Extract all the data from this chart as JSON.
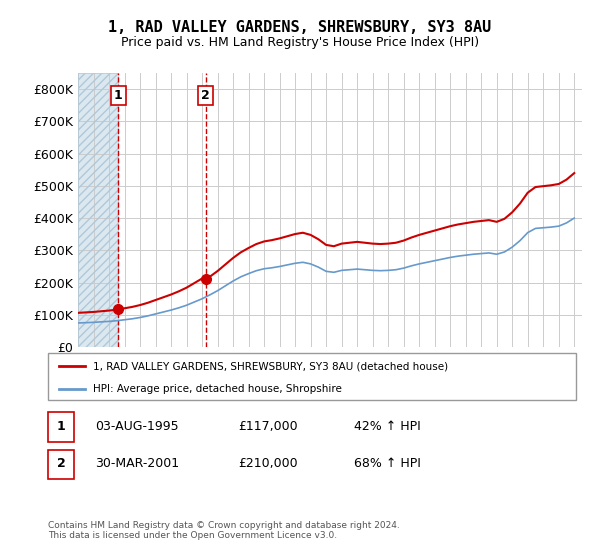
{
  "title": "1, RAD VALLEY GARDENS, SHREWSBURY, SY3 8AU",
  "subtitle": "Price paid vs. HM Land Registry's House Price Index (HPI)",
  "legend_label_red": "1, RAD VALLEY GARDENS, SHREWSBURY, SY3 8AU (detached house)",
  "legend_label_blue": "HPI: Average price, detached house, Shropshire",
  "red_color": "#cc0000",
  "blue_color": "#6699cc",
  "hatch_color": "#c8d8e8",
  "ylim": [
    0,
    850000
  ],
  "yticks": [
    0,
    100000,
    200000,
    300000,
    400000,
    500000,
    600000,
    700000,
    800000
  ],
  "ytick_labels": [
    "£0",
    "£100K",
    "£200K",
    "£300K",
    "£400K",
    "£500K",
    "£600K",
    "£700K",
    "£800K"
  ],
  "transaction1_date": 1995.58,
  "transaction1_price": 117000,
  "transaction1_label": "1",
  "transaction2_date": 2001.24,
  "transaction2_price": 210000,
  "transaction2_label": "2",
  "footer": "Contains HM Land Registry data © Crown copyright and database right 2024.\nThis data is licensed under the Open Government Licence v3.0.",
  "table_data": [
    [
      "1",
      "03-AUG-1995",
      "£117,000",
      "42% ↑ HPI"
    ],
    [
      "2",
      "30-MAR-2001",
      "£210,000",
      "68% ↑ HPI"
    ]
  ]
}
